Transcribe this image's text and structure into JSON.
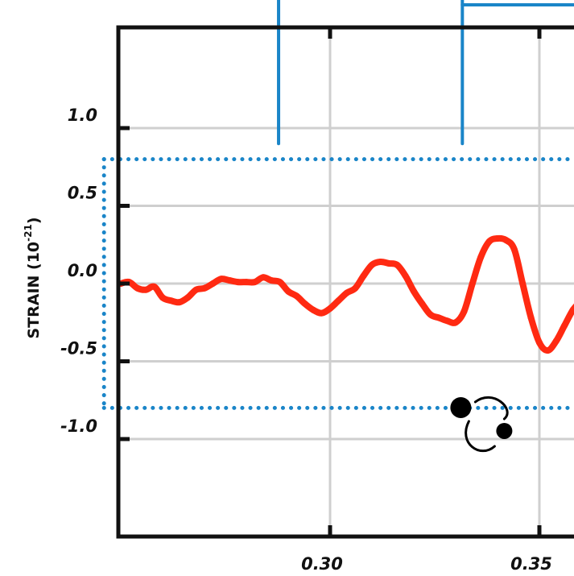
{
  "chart_data": {
    "type": "line",
    "title": "",
    "xlabel": "",
    "ylabel": "STRAIN (10",
    "ylabel_exponent": "-21",
    "ylabel_close": ")",
    "xlim": [
      0.25,
      0.361
    ],
    "ylim": [
      -1.6,
      1.65
    ],
    "grid": true,
    "x_ticks": [
      0.3,
      0.35
    ],
    "x_tick_labels": [
      "0.30",
      "0.35"
    ],
    "y_ticks": [
      1.0,
      0.5,
      0.0,
      -0.5,
      -1.0
    ],
    "y_tick_labels": [
      "1.0",
      "0.5",
      "0.0",
      "-0.5",
      "-1.0"
    ],
    "series": [
      {
        "color": "#ff2a12",
        "x": [
          0.25,
          0.252,
          0.254,
          0.256,
          0.258,
          0.26,
          0.262,
          0.264,
          0.266,
          0.268,
          0.27,
          0.272,
          0.274,
          0.276,
          0.278,
          0.28,
          0.282,
          0.284,
          0.286,
          0.288,
          0.29,
          0.292,
          0.294,
          0.296,
          0.298,
          0.3,
          0.302,
          0.304,
          0.306,
          0.308,
          0.31,
          0.312,
          0.314,
          0.316,
          0.318,
          0.32,
          0.322,
          0.324,
          0.326,
          0.328,
          0.33,
          0.332,
          0.334,
          0.336,
          0.338,
          0.34,
          0.342,
          0.344,
          0.346,
          0.348,
          0.35,
          0.352,
          0.354,
          0.356,
          0.358,
          0.36,
          0.361
        ],
        "y": [
          0.0,
          0.01,
          -0.03,
          -0.04,
          -0.02,
          -0.09,
          -0.11,
          -0.12,
          -0.09,
          -0.04,
          -0.03,
          0.0,
          0.03,
          0.02,
          0.01,
          0.01,
          0.01,
          0.04,
          0.02,
          0.01,
          -0.05,
          -0.08,
          -0.13,
          -0.17,
          -0.19,
          -0.16,
          -0.11,
          -0.06,
          -0.03,
          0.05,
          0.12,
          0.14,
          0.13,
          0.12,
          0.05,
          -0.05,
          -0.13,
          -0.2,
          -0.22,
          -0.24,
          -0.25,
          -0.18,
          0.0,
          0.17,
          0.27,
          0.29,
          0.28,
          0.22,
          0.0,
          -0.22,
          -0.38,
          -0.43,
          -0.37,
          -0.27,
          -0.17,
          -0.11,
          -0.08
        ]
      }
    ],
    "annotations": {
      "dotted_box": {
        "y_top": 0.8,
        "y_bottom": -0.8,
        "x_left": 0.246,
        "color": "#1a85c8"
      },
      "markers": [
        {
          "x": 0.2877,
          "y_bottom": 0.9,
          "color": "#1a85c8"
        },
        {
          "x": 0.3316,
          "y_bottom": 0.9,
          "color": "#1a85c8",
          "top_bar": true
        }
      ],
      "binary_icon": {
        "x": 0.337,
        "y": -0.86
      }
    }
  }
}
